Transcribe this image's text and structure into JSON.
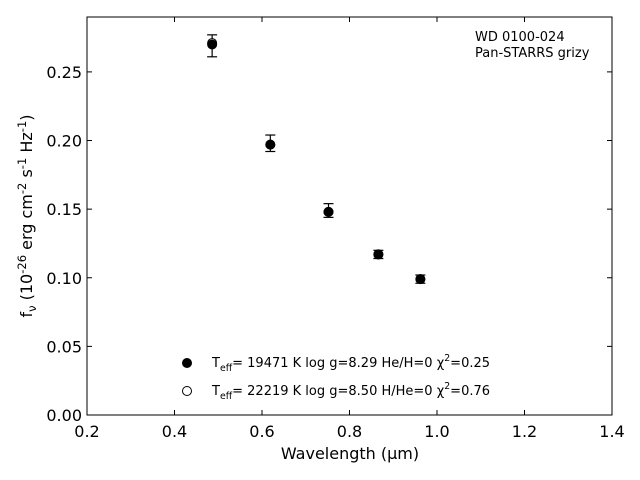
{
  "chart_data": {
    "type": "scatter",
    "xlabel": "Wavelength (μm)",
    "ylabel": "f_ν (10^-26 erg cm^-2 s^-1 Hz^-1)",
    "xlim": [
      0.2,
      1.4
    ],
    "ylim": [
      0.0,
      0.29
    ],
    "xticks": [
      "0.2",
      "0.4",
      "0.6",
      "0.8",
      "1.0",
      "1.2",
      "1.4"
    ],
    "yticks": [
      "0.00",
      "0.05",
      "0.10",
      "0.15",
      "0.20",
      "0.25"
    ],
    "annotation": [
      "WD 0100-024",
      "Pan-STARRS grizy"
    ],
    "observed": {
      "x": [
        0.486,
        0.619,
        0.752,
        0.866,
        0.962
      ],
      "y": [
        0.269,
        0.198,
        0.149,
        0.117,
        0.099
      ],
      "err": [
        0.008,
        0.006,
        0.005,
        0.003,
        0.003
      ]
    },
    "series": [
      {
        "name": "T_eff= 19471 K  log g=8.29  He/H=0  χ²=0.25",
        "marker": "filled-circle",
        "x": [
          0.486,
          0.619,
          0.752,
          0.866,
          0.962
        ],
        "y": [
          0.27,
          0.197,
          0.148,
          0.117,
          0.099
        ]
      },
      {
        "name": "T_eff= 22219 K  log g=8.50  H/He=0  χ²=0.76",
        "marker": "open-circle",
        "x": [
          0.486,
          0.619,
          0.752,
          0.866,
          0.962
        ],
        "y": [
          0.271,
          0.197,
          0.148,
          0.117,
          0.099
        ]
      }
    ],
    "grid": false,
    "legend_position": "bottom-center"
  }
}
